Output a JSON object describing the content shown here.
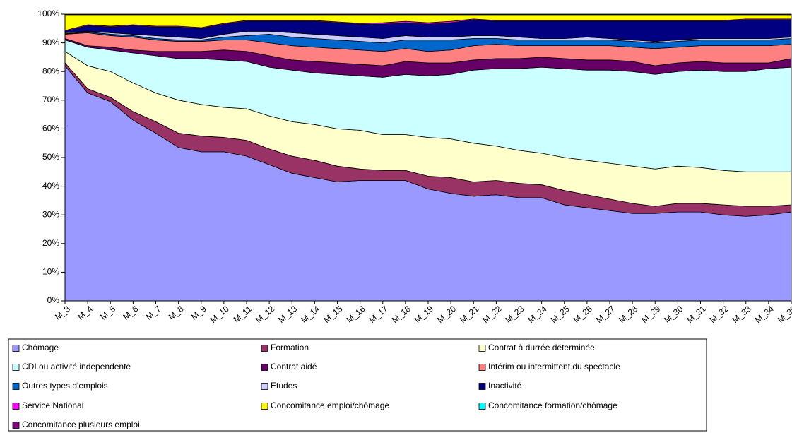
{
  "chart_data": {
    "type": "stacked_area",
    "categories": [
      "M_3",
      "M_4",
      "M_5",
      "M_6",
      "M_7",
      "M_8",
      "M_9",
      "M_10",
      "M_11",
      "M_12",
      "M_13",
      "M_14",
      "M_15",
      "M_16",
      "M_17",
      "M_18",
      "M_19",
      "M_20",
      "M_21",
      "M_22",
      "M_23",
      "M_24",
      "M_25",
      "M_26",
      "M_27",
      "M_28",
      "M_29",
      "M_30",
      "M_31",
      "M_32",
      "M_33",
      "M_34",
      "M_35"
    ],
    "ylim": [
      0,
      100
    ],
    "yticks": [
      {
        "value": 0,
        "label": "0%"
      },
      {
        "value": 10,
        "label": "10%"
      },
      {
        "value": 20,
        "label": "20%"
      },
      {
        "value": 30,
        "label": "30%"
      },
      {
        "value": 40,
        "label": "40%"
      },
      {
        "value": 50,
        "label": "50%"
      },
      {
        "value": 60,
        "label": "60%"
      },
      {
        "value": 70,
        "label": "70%"
      },
      {
        "value": 80,
        "label": "80%"
      },
      {
        "value": 90,
        "label": "90%"
      },
      {
        "value": 100,
        "label": "100%"
      }
    ],
    "legend": "bottom",
    "series": [
      {
        "name": "Chômage",
        "color": "#9999ff",
        "values": [
          82,
          72.5,
          69.5,
          63,
          58.5,
          53.5,
          52,
          52,
          50.5,
          47.5,
          44.5,
          43,
          41.5,
          42,
          42,
          42,
          39,
          37.5,
          36.5,
          37,
          36,
          36,
          33.5,
          32.5,
          31.5,
          30.5,
          30.5,
          31,
          31,
          30,
          29.5,
          30,
          31
        ]
      },
      {
        "name": "Formation",
        "color": "#993366",
        "values": [
          1,
          1.5,
          1.5,
          3,
          4,
          5,
          5.5,
          5,
          5.5,
          5.5,
          6,
          6,
          5.5,
          4,
          3.5,
          3.5,
          4.5,
          5.5,
          5,
          5,
          5,
          4.5,
          5,
          4.5,
          4,
          3.5,
          2.5,
          3,
          3,
          3.5,
          3.5,
          3,
          2.5
        ]
      },
      {
        "name": "Contrat à durrée déterminée",
        "color": "#ffffcc",
        "values": [
          4,
          8,
          9,
          10,
          10,
          11.5,
          11,
          10.5,
          11,
          11.5,
          12,
          12.5,
          13,
          13.5,
          12.5,
          12.5,
          13.5,
          13.5,
          13.5,
          12,
          11.5,
          11,
          11.5,
          12,
          12.5,
          13,
          13,
          13,
          12.5,
          12,
          12,
          12,
          11.5
        ]
      },
      {
        "name": "CDI ou activité independente",
        "color": "#ccffff",
        "values": [
          4,
          6.5,
          7.5,
          10.5,
          13,
          14.5,
          16,
          16.5,
          16.5,
          17,
          18,
          18,
          19,
          19,
          20,
          21,
          21.5,
          22.5,
          25.5,
          27,
          28.5,
          30,
          31,
          31.5,
          32.5,
          33,
          33,
          33,
          34,
          34.5,
          35,
          36,
          36.5
        ]
      },
      {
        "name": "Contrat aidé",
        "color": "#660066",
        "values": [
          0.5,
          0.5,
          1,
          1,
          1.5,
          2.5,
          2.5,
          3.5,
          3.5,
          4,
          3.5,
          4,
          4,
          4,
          4,
          4.5,
          4.5,
          4,
          3.5,
          3.5,
          3.5,
          3.5,
          3.5,
          3.5,
          3.5,
          3.5,
          3,
          3,
          3,
          3,
          3,
          2,
          3
        ]
      },
      {
        "name": "Intérim ou intermittent du spectacle",
        "color": "#ff8080",
        "values": [
          1.5,
          4.5,
          4,
          4.5,
          4,
          3.5,
          3.5,
          3.5,
          4,
          4.5,
          5,
          5,
          5,
          5,
          5,
          4.5,
          4,
          4.5,
          5,
          5,
          4.5,
          4,
          4.5,
          5,
          5,
          5,
          6,
          5.5,
          5.5,
          6,
          6,
          6,
          5
        ]
      },
      {
        "name": "Outres types d'emplois",
        "color": "#0066cc",
        "values": [
          0.2,
          0.3,
          0.5,
          0.5,
          0.5,
          0.5,
          0.5,
          1,
          1.5,
          3,
          3,
          3,
          3,
          3,
          3,
          3,
          4,
          3.5,
          2.5,
          2,
          2,
          2,
          2,
          2,
          2,
          2,
          2,
          2,
          2,
          2,
          2,
          2,
          2
        ]
      },
      {
        "name": "Etudes",
        "color": "#ccccff",
        "values": [
          0.3,
          0.2,
          0.5,
          0.5,
          1,
          1,
          0.5,
          1,
          1.5,
          1,
          1.5,
          1.5,
          1.5,
          1.5,
          1.5,
          1.5,
          1,
          1,
          1,
          1,
          1,
          0.5,
          0.5,
          1,
          0.5,
          0.5,
          0.5,
          0.5,
          0.5,
          0.5,
          0.5,
          0.5,
          0.5
        ]
      },
      {
        "name": "Inactivité",
        "color": "#000080",
        "values": [
          0.5,
          2,
          2,
          3,
          3,
          3.5,
          3.5,
          3.5,
          3.5,
          3.5,
          4,
          4.5,
          4.5,
          4.5,
          5,
          4.5,
          4.5,
          5,
          5.5,
          5,
          5.5,
          6,
          6,
          5.5,
          6,
          6.5,
          7,
          6.5,
          6,
          6,
          6.5,
          6.5,
          6
        ]
      },
      {
        "name": "Service National",
        "color": "#ff00ff",
        "values": [
          0.3,
          0.3,
          0.3,
          0.3,
          0.3,
          0.3,
          0.3,
          0.3,
          0.3,
          0.3,
          0.3,
          0.3,
          0.3,
          0.3,
          0.5,
          0.5,
          0.5,
          0.5,
          0.3,
          0.3,
          0.3,
          0.3,
          0.3,
          0.3,
          0.3,
          0.3,
          0.3,
          0.3,
          0.3,
          0.3,
          0.3,
          0.3,
          0.3
        ]
      },
      {
        "name": "Concomitance emploi/chômage",
        "color": "#ffff00",
        "values": [
          5.5,
          3.5,
          4,
          3.5,
          4,
          4,
          4.5,
          3,
          2,
          2,
          2,
          2,
          2.5,
          3,
          2.8,
          2.3,
          2.8,
          2.3,
          1.5,
          2,
          2,
          2,
          2,
          2,
          2,
          2,
          2,
          2,
          2,
          2,
          1.5,
          1.5,
          1.5
        ]
      },
      {
        "name": "Concomitance formation/chômage",
        "color": "#00ffff",
        "values": [
          0.1,
          0.1,
          0.1,
          0.1,
          0.1,
          0.1,
          0.1,
          0.1,
          0.1,
          0.1,
          0.1,
          0.1,
          0.1,
          0.1,
          0.1,
          0.1,
          0.1,
          0.1,
          0.1,
          0.1,
          0.1,
          0.1,
          0.1,
          0.1,
          0.1,
          0.1,
          0.1,
          0.1,
          0.1,
          0.1,
          0.1,
          0.1,
          0.1
        ]
      },
      {
        "name": "Concomitance plusieurs emploi",
        "color": "#800080",
        "values": [
          0.1,
          0.1,
          0.1,
          0.1,
          0.1,
          0.1,
          0.1,
          0.1,
          0.1,
          0.1,
          0.1,
          0.1,
          0.1,
          0.1,
          0.1,
          0.1,
          0.1,
          0.1,
          0.1,
          0.1,
          0.1,
          0.1,
          0.1,
          0.1,
          0.1,
          0.1,
          0.1,
          0.1,
          0.1,
          0.1,
          0.1,
          0.1,
          0.1
        ]
      }
    ]
  }
}
